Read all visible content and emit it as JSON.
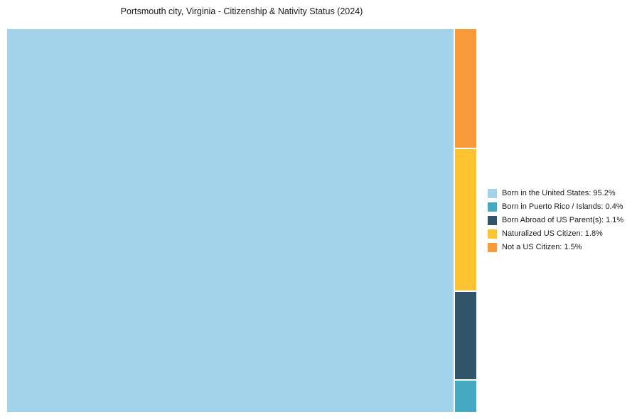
{
  "chart_data": {
    "type": "pie",
    "variant": "treemap",
    "title": "Portsmouth city, Virginia - Citizenship & Nativity Status (2024)",
    "legend_position": "right",
    "segments": [
      {
        "label": "Born in the United States",
        "value": 95.2,
        "color": "#a3d3ea",
        "legend_label": "Born in the United States: 95.2%"
      },
      {
        "label": "Born in Puerto Rico / Islands",
        "value": 0.4,
        "color": "#46a9c2",
        "legend_label": "Born in Puerto Rico / Islands: 0.4%"
      },
      {
        "label": "Born Abroad of US Parent(s)",
        "value": 1.1,
        "color": "#30556a",
        "legend_label": "Born Abroad of US Parent(s): 1.1%"
      },
      {
        "label": "Naturalized US Citizen",
        "value": 1.8,
        "color": "#fdc432",
        "legend_label": "Naturalized US Citizen: 1.8%"
      },
      {
        "label": "Not a US Citizen",
        "value": 1.5,
        "color": "#f99b38",
        "legend_label": "Not a US Citizen: 1.5%"
      }
    ],
    "side_column_order_top_to_bottom": [
      "Not a US Citizen",
      "Naturalized US Citizen",
      "Born Abroad of US Parent(s)",
      "Born in Puerto Rico / Islands"
    ]
  }
}
